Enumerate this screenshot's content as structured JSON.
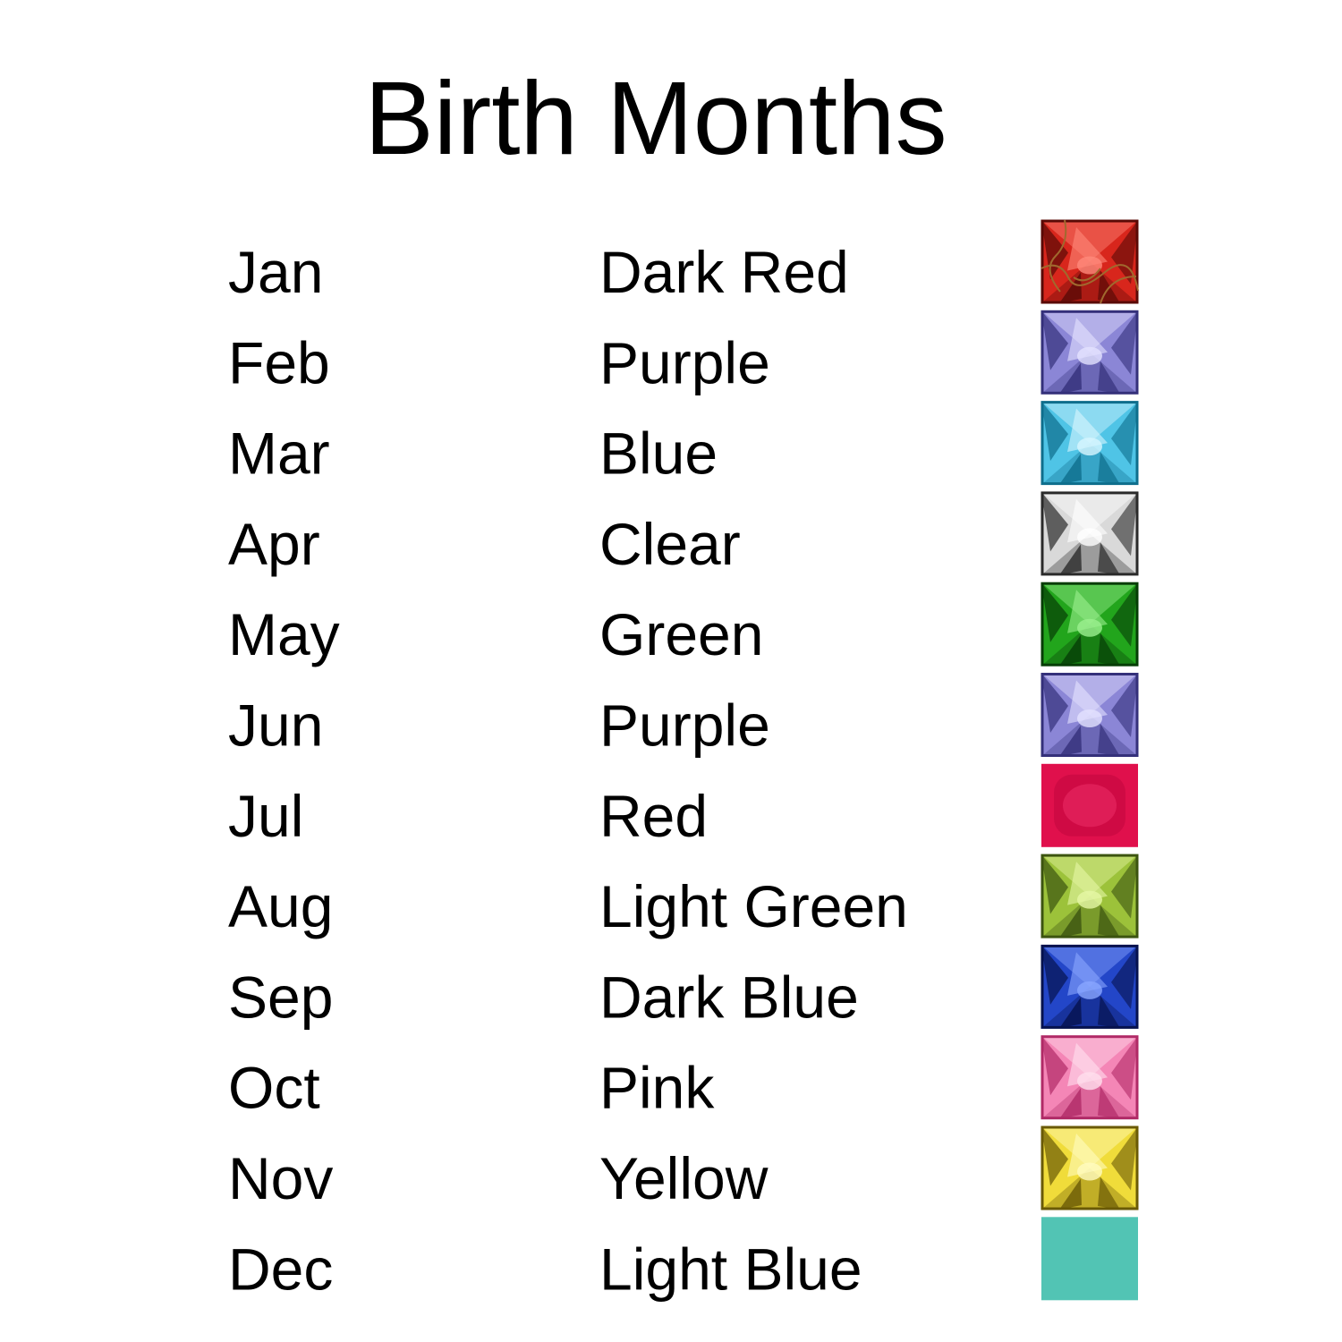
{
  "header": {
    "title": "Birth Months"
  },
  "table": {
    "rows": [
      [
        "Jan",
        "Dark Red"
      ],
      [
        "Feb",
        "Purple"
      ],
      [
        "Mar",
        "Blue"
      ],
      [
        "Apr",
        "Clear"
      ],
      [
        "May",
        "Green"
      ],
      [
        "Jun",
        "Purple"
      ],
      [
        "Jul",
        "Red"
      ],
      [
        "Aug",
        "Light Green"
      ],
      [
        "Sep",
        "Dark Blue"
      ],
      [
        "Oct",
        "Pink"
      ],
      [
        "Nov",
        "Yellow"
      ],
      [
        "Dec",
        "Light Blue"
      ]
    ]
  }
}
